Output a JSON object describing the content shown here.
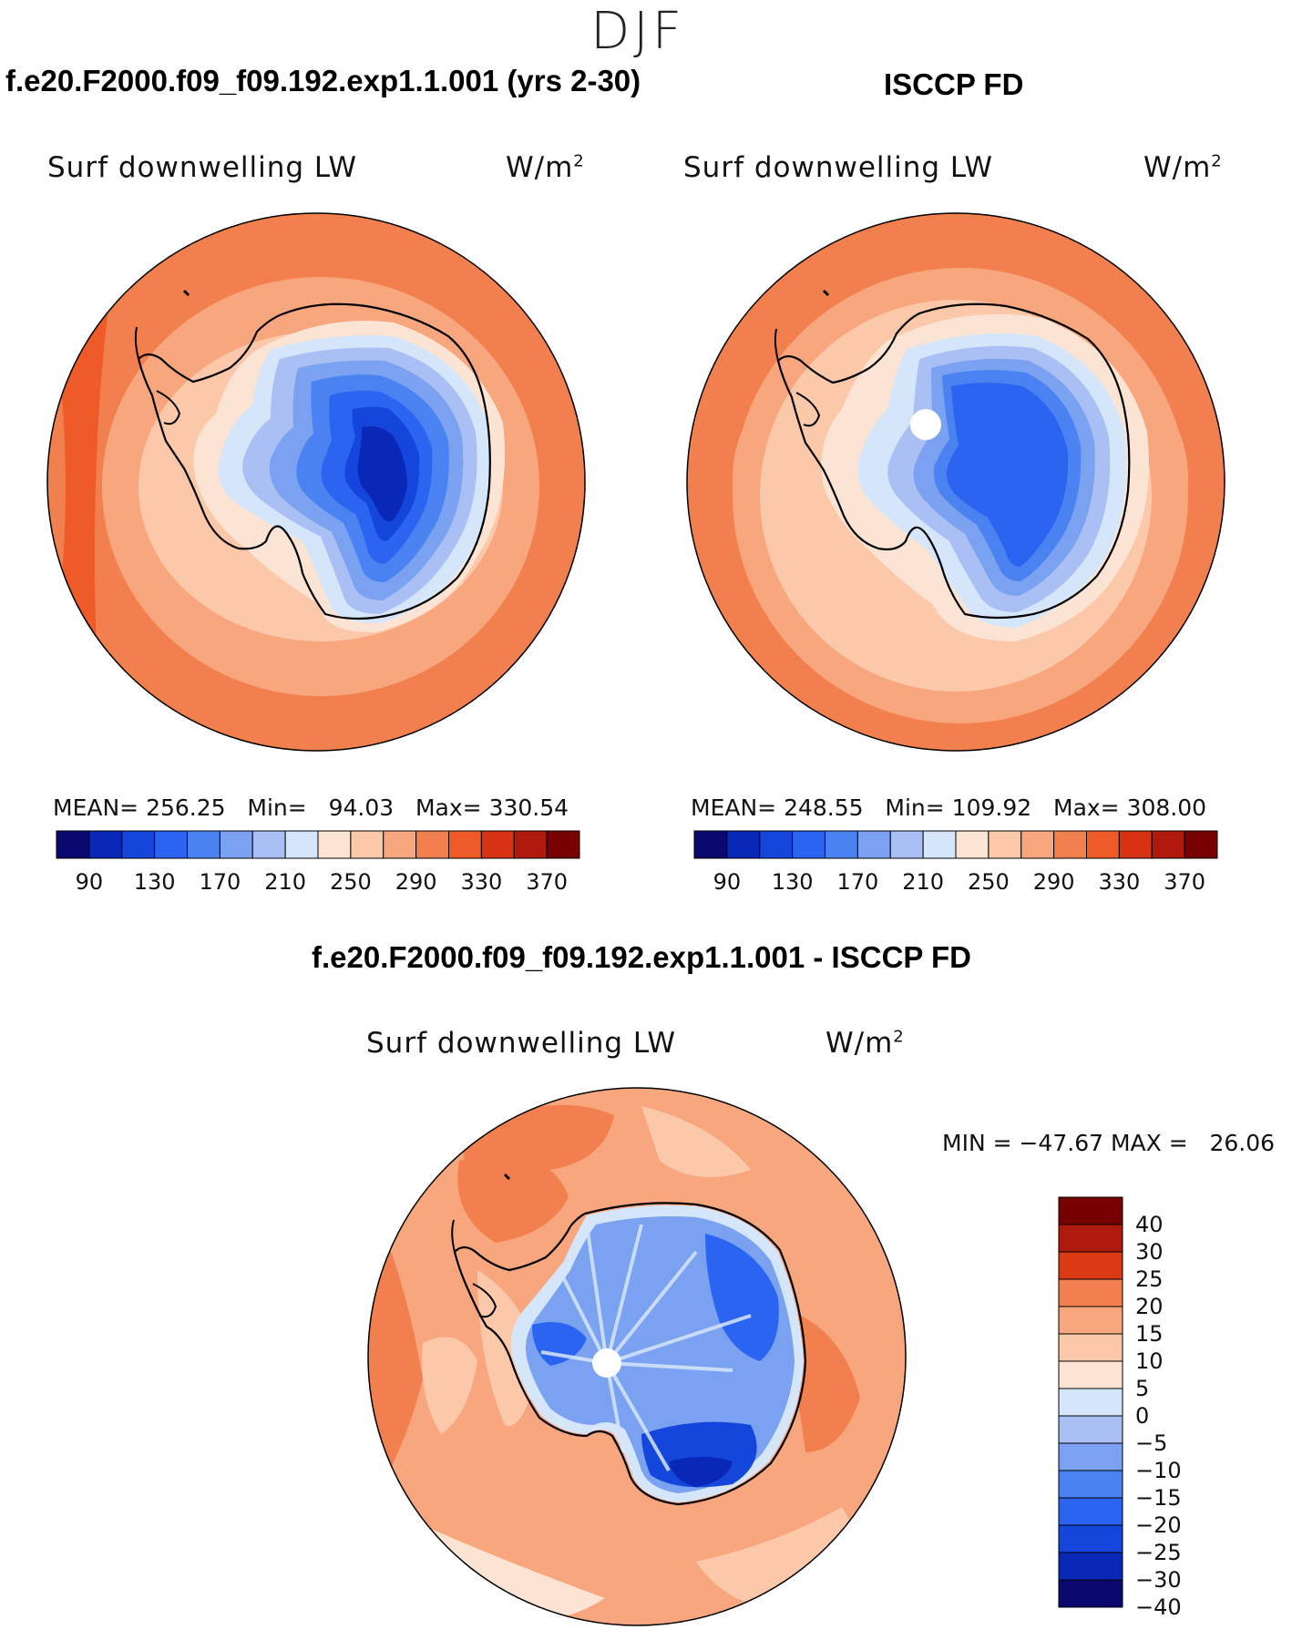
{
  "header": {
    "season": "DJF"
  },
  "panel_left": {
    "title": "f.e20.F2000.f09_f09.192.exp1.1.001 (yrs 2-30)",
    "variable": "Surf downwelling LW",
    "units": "W/m",
    "units_exp": "2",
    "mean_label": "MEAN=",
    "mean": "256.25",
    "min_label": "Min=",
    "min": "94.03",
    "max_label": "Max=",
    "max": "330.54"
  },
  "panel_right": {
    "title": "ISCCP FD",
    "variable": "Surf downwelling LW",
    "units": "W/m",
    "units_exp": "2",
    "mean_label": "MEAN=",
    "mean": "248.55",
    "min_label": "Min=",
    "min": "109.92",
    "max_label": "Max=",
    "max": "308.00"
  },
  "panel_diff": {
    "title": "f.e20.F2000.f09_f09.192.exp1.1.001 - ISCCP FD",
    "variable": "Surf downwelling LW",
    "units": "W/m",
    "units_exp": "2",
    "minmax_text": "MIN = −47.67 MAX =   26.06"
  },
  "chart_data": [
    {
      "type": "heatmap",
      "title": "f.e20.F2000.f09_f09.192.exp1.1.001 (yrs 2-30)",
      "projection": "south-polar-stereographic",
      "variable": "Surf downwelling LW",
      "units": "W/m2",
      "mean": 256.25,
      "min": 94.03,
      "max": 330.54,
      "colorbar_ticks": [
        "90",
        "130",
        "170",
        "210",
        "250",
        "290",
        "330",
        "370"
      ],
      "colorbar_levels": [
        90,
        110,
        130,
        150,
        170,
        190,
        210,
        230,
        250,
        270,
        290,
        310,
        330,
        350,
        370
      ],
      "colors": [
        "#08086e",
        "#0a28b8",
        "#1446dc",
        "#2a64f0",
        "#4a82f2",
        "#7aa2f0",
        "#aac0f4",
        "#d6e6fa",
        "#fce4d4",
        "#fcc8aa",
        "#f8a67e",
        "#f2804e",
        "#ee5a28",
        "#d83214",
        "#b01a0c",
        "#780000"
      ]
    },
    {
      "type": "heatmap",
      "title": "ISCCP FD",
      "projection": "south-polar-stereographic",
      "variable": "Surf downwelling LW",
      "units": "W/m2",
      "mean": 248.55,
      "min": 109.92,
      "max": 308.0,
      "colorbar_ticks": [
        "90",
        "130",
        "170",
        "210",
        "250",
        "290",
        "330",
        "370"
      ],
      "colorbar_levels": [
        90,
        110,
        130,
        150,
        170,
        190,
        210,
        230,
        250,
        270,
        290,
        310,
        330,
        350,
        370
      ],
      "colors": [
        "#08086e",
        "#0a28b8",
        "#1446dc",
        "#2a64f0",
        "#4a82f2",
        "#7aa2f0",
        "#aac0f4",
        "#d6e6fa",
        "#fce4d4",
        "#fcc8aa",
        "#f8a67e",
        "#f2804e",
        "#ee5a28",
        "#d83214",
        "#b01a0c",
        "#780000"
      ]
    },
    {
      "type": "heatmap",
      "title": "f.e20.F2000.f09_f09.192.exp1.1.001 - ISCCP FD",
      "projection": "south-polar-stereographic",
      "variable": "Surf downwelling LW",
      "units": "W/m2",
      "min": -47.67,
      "max": 26.06,
      "colorbar_ticks": [
        "40",
        "30",
        "25",
        "20",
        "15",
        "10",
        "5",
        "0",
        "−5",
        "−10",
        "−15",
        "−20",
        "−25",
        "−30",
        "−40"
      ],
      "colors": [
        "#780000",
        "#b01a0c",
        "#dc3a14",
        "#f2804e",
        "#f8a67e",
        "#fcc8aa",
        "#fce4d4",
        "#d6e6fa",
        "#aac0f4",
        "#7aa2f0",
        "#4a82f2",
        "#2a64f0",
        "#1446dc",
        "#0a28b8",
        "#08086e"
      ]
    }
  ]
}
